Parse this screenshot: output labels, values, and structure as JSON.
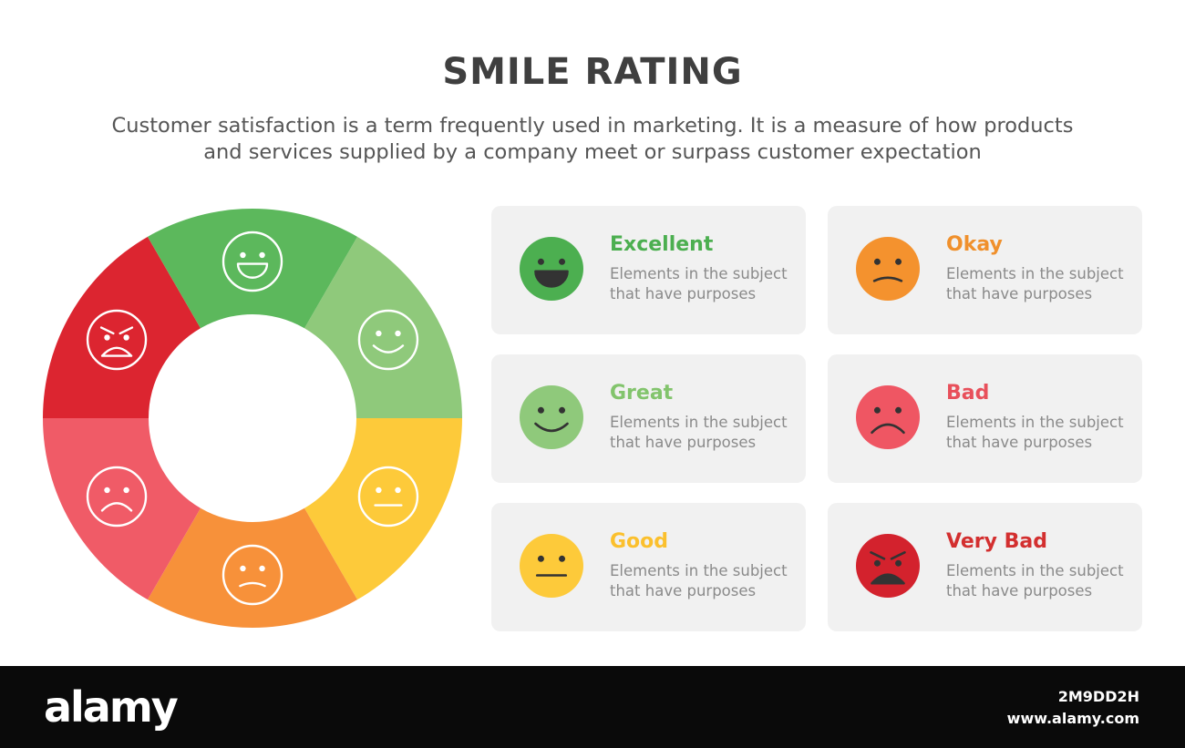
{
  "header": {
    "title": "SMILE RATING",
    "subtitle_line1": "Customer satisfaction is a term frequently used in marketing. It is a measure of how products",
    "subtitle_line2": "and services supplied by a company meet or surpass customer expectation"
  },
  "ring": {
    "segments": [
      {
        "face": "smile",
        "color": "#8fc97b"
      },
      {
        "face": "neutral",
        "color": "#fdca3a"
      },
      {
        "face": "slight-frown",
        "color": "#f7913a"
      },
      {
        "face": "frown",
        "color": "#f05b67"
      },
      {
        "face": "angry",
        "color": "#dc2530"
      },
      {
        "face": "grin",
        "color": "#5cb85c"
      }
    ]
  },
  "cards": [
    {
      "label": "Excellent",
      "color": "#4caf50",
      "face": "grin",
      "face_color": "#4caf50",
      "desc1": "Elements in the subject",
      "desc2": "that have purposes"
    },
    {
      "label": "Okay",
      "color": "#f0902c",
      "face": "slight-frown",
      "face_color": "#f4922e",
      "desc1": "Elements in the subject",
      "desc2": "that have purposes"
    },
    {
      "label": "Great",
      "color": "#82c46c",
      "face": "smile",
      "face_color": "#8fc97b",
      "desc1": "Elements in the subject",
      "desc2": "that have purposes"
    },
    {
      "label": "Bad",
      "color": "#e8505b",
      "face": "frown",
      "face_color": "#ef5663",
      "desc1": "Elements in the subject",
      "desc2": "that have purposes"
    },
    {
      "label": "Good",
      "color": "#fbc02d",
      "face": "neutral",
      "face_color": "#fdca3a",
      "desc1": "Elements in the subject",
      "desc2": "that have purposes"
    },
    {
      "label": "Very Bad",
      "color": "#d32f2f",
      "face": "angry",
      "face_color": "#d3222d",
      "desc1": "Elements in the subject",
      "desc2": "that have purposes"
    }
  ],
  "footer": {
    "brand": "alamy",
    "image_id": "2M9DD2H",
    "site": "www.alamy.com"
  }
}
